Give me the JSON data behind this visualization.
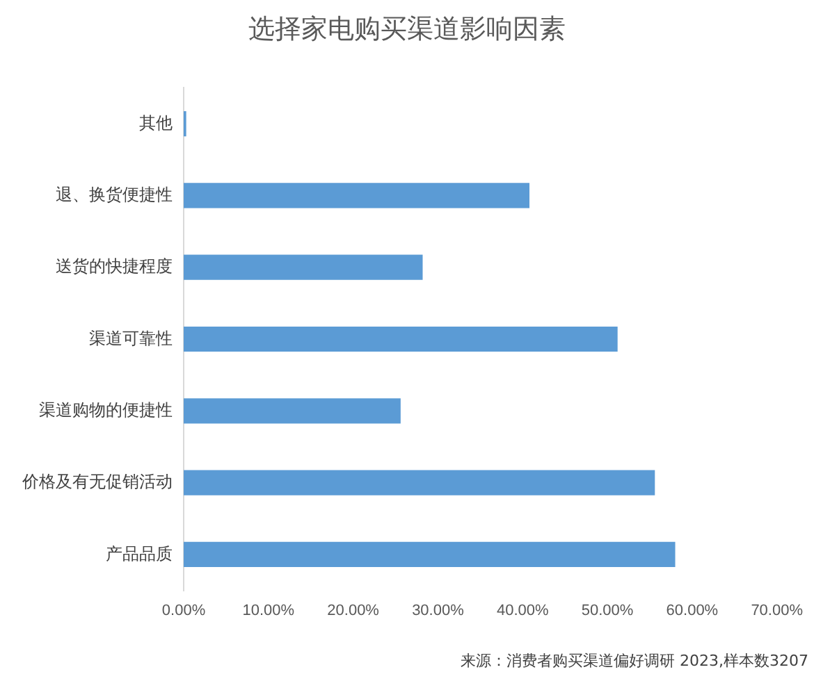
{
  "chart_data": {
    "type": "bar",
    "orientation": "horizontal",
    "title": "选择家电购买渠道影响因素",
    "categories": [
      "其他",
      "退、换货便捷性",
      "送货的快捷程度",
      "渠道可靠性",
      "渠道购物的便捷性",
      "价格及有无促销活动",
      "产品品质"
    ],
    "values": [
      0.3,
      40.8,
      28.2,
      51.2,
      25.6,
      55.6,
      58.0
    ],
    "color": "#5b9bd5",
    "xlim": [
      0,
      70
    ],
    "xticks": [
      {
        "value": 0,
        "label": "0.00%"
      },
      {
        "value": 10,
        "label": "10.00%"
      },
      {
        "value": 20,
        "label": "20.00%"
      },
      {
        "value": 30,
        "label": "30.00%"
      },
      {
        "value": 40,
        "label": "40.00%"
      },
      {
        "value": 50,
        "label": "50.00%"
      },
      {
        "value": 60,
        "label": "60.00%"
      },
      {
        "value": 70,
        "label": "70.00%"
      }
    ],
    "grid": false,
    "legend": false,
    "annotations": [
      "来源：消费者购买渠道偏好调研 2023,样本数3207"
    ]
  }
}
